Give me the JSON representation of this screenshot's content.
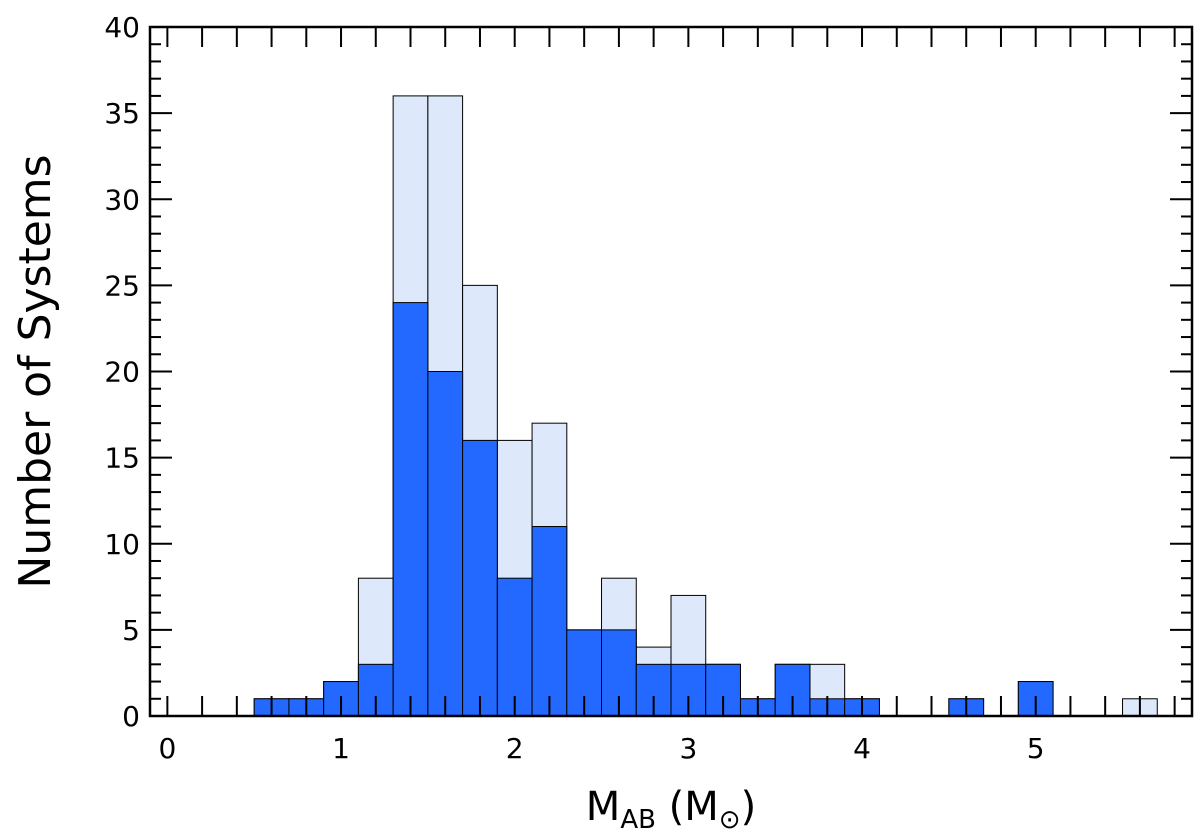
{
  "chart_data": {
    "type": "bar",
    "title": "",
    "xlabel": {
      "main": "M",
      "sub": "AB",
      "unit_open": " (M",
      "unit_sub": "⊙",
      "unit_close": ")"
    },
    "ylabel": "Number of Systems",
    "xlim": [
      -0.1,
      5.9
    ],
    "ylim": [
      0,
      40
    ],
    "bin_width": 0.2,
    "x_ticks": [
      0,
      1,
      2,
      3,
      4,
      5
    ],
    "y_ticks": [
      0,
      5,
      10,
      15,
      20,
      25,
      30,
      35,
      40
    ],
    "x_tick_labels": [
      "0",
      "1",
      "2",
      "3",
      "4",
      "5"
    ],
    "y_tick_labels": [
      "0",
      "5",
      "10",
      "15",
      "20",
      "25",
      "30",
      "35",
      "40"
    ],
    "grid": false,
    "colors": {
      "primary": "#2369ff",
      "secondary": "#dde8fb",
      "edge": "#000000"
    },
    "bin_left_edges": [
      0.5,
      0.7,
      0.9,
      1.1,
      1.3,
      1.5,
      1.7,
      1.9,
      2.1,
      2.3,
      2.5,
      2.7,
      2.9,
      3.1,
      3.3,
      3.5,
      3.7,
      3.9,
      4.1,
      4.3,
      4.5,
      4.7,
      4.9,
      5.1,
      5.3,
      5.5
    ],
    "series": [
      {
        "values": [
          1,
          1,
          2,
          8,
          36,
          36,
          25,
          16,
          17,
          5,
          8,
          4,
          7,
          3,
          1,
          3,
          3,
          1,
          0,
          0,
          1,
          0,
          2,
          0,
          0,
          1
        ]
      },
      {
        "values": [
          1,
          1,
          2,
          3,
          24,
          20,
          16,
          8,
          11,
          5,
          5,
          3,
          3,
          3,
          1,
          3,
          1,
          1,
          0,
          0,
          1,
          0,
          2,
          0,
          0,
          0
        ]
      }
    ],
    "extra_bins": [
      {
        "x": 0.6,
        "series0": 1,
        "series1": 1
      }
    ]
  }
}
